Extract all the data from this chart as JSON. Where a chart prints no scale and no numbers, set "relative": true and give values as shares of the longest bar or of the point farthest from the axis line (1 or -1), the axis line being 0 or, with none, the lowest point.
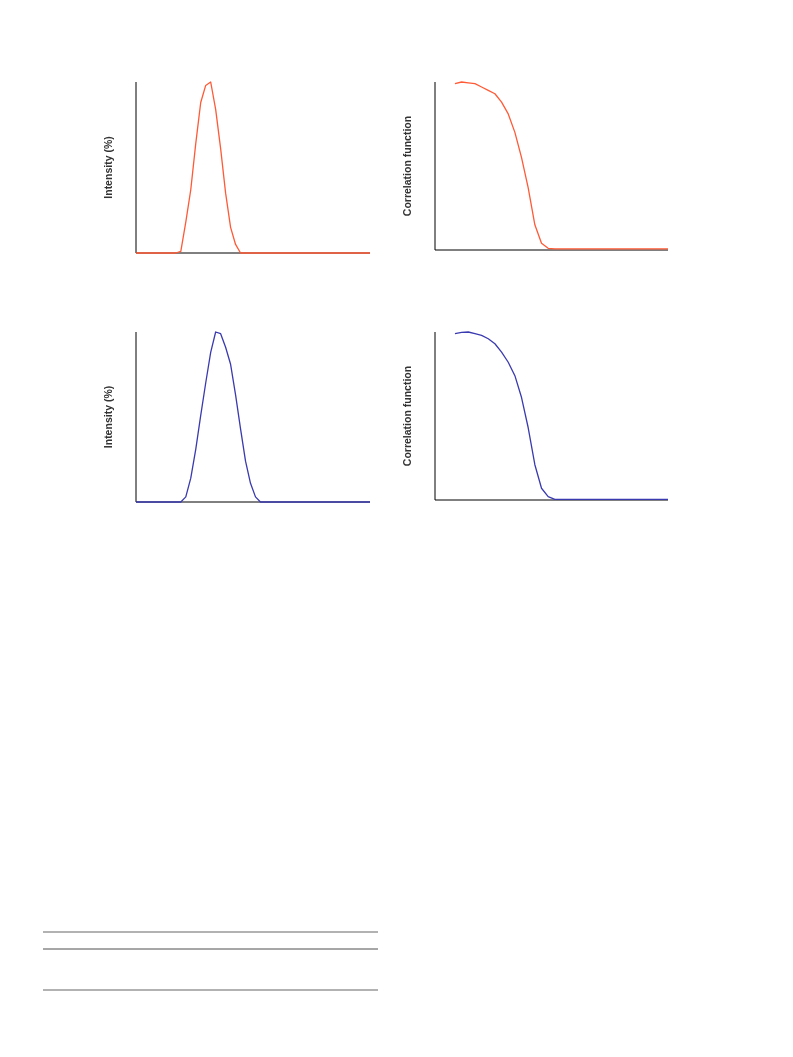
{
  "chart_data": [
    {
      "type": "line",
      "relative": true,
      "ylabel": "Intensity (%)",
      "categories": [
        null,
        null,
        null,
        null,
        null,
        null,
        null,
        null,
        null,
        null,
        null,
        null,
        null,
        null,
        null,
        null,
        null,
        null,
        null,
        null,
        null,
        null,
        null,
        null,
        null,
        null,
        null,
        null,
        null,
        null,
        null,
        null,
        null,
        null,
        null,
        null,
        null,
        null,
        null,
        null,
        null,
        null,
        null,
        null,
        null,
        null,
        null,
        null
      ],
      "series": [
        {
          "color": "#ff5a36",
          "values": [
            0,
            0,
            0,
            0,
            0,
            0,
            0,
            0,
            0,
            0.01,
            0.18,
            0.37,
            0.64,
            0.88,
            0.98,
            1,
            0.84,
            0.61,
            0.35,
            0.15,
            0.05,
            0,
            0,
            0,
            0,
            0,
            0,
            0,
            0,
            0,
            0,
            0,
            0,
            0,
            0,
            0,
            0,
            0,
            0,
            0,
            0,
            0,
            0,
            0,
            0,
            0,
            0,
            0
          ]
        }
      ]
    },
    {
      "type": "line",
      "relative": true,
      "ylabel": "Correlation function",
      "categories": [
        null,
        null,
        null,
        null,
        null,
        null,
        null,
        null,
        null,
        null,
        null,
        null,
        null,
        null,
        null,
        null,
        null,
        null,
        null,
        null,
        null,
        null,
        null,
        null,
        null,
        null,
        null,
        null,
        null,
        null,
        null,
        null,
        null,
        null,
        null,
        null
      ],
      "series": [
        {
          "color": "#ff5a36",
          "values": [
            null,
            null,
            null,
            0.99,
            1,
            0.995,
            0.99,
            0.97,
            0.95,
            0.93,
            0.88,
            0.81,
            0.7,
            0.55,
            0.37,
            0.15,
            0.04,
            0.01,
            0.007,
            0.007,
            0.007,
            0.007,
            0.007,
            0.007,
            0.007,
            0.007,
            0.007,
            0.007,
            0.007,
            0.007,
            0.007,
            0.007,
            0.007,
            0.007,
            0.007,
            0.007
          ]
        }
      ]
    },
    {
      "type": "line",
      "relative": true,
      "ylabel": "Intensity (%)",
      "categories": [
        null,
        null,
        null,
        null,
        null,
        null,
        null,
        null,
        null,
        null,
        null,
        null,
        null,
        null,
        null,
        null,
        null,
        null,
        null,
        null,
        null,
        null,
        null,
        null,
        null,
        null,
        null,
        null,
        null,
        null,
        null,
        null,
        null,
        null,
        null,
        null,
        null,
        null,
        null,
        null,
        null,
        null,
        null,
        null,
        null,
        null,
        null,
        null
      ],
      "series": [
        {
          "color": "#3a3ab0",
          "values": [
            0,
            0,
            0,
            0,
            0,
            0,
            0,
            0,
            0,
            0,
            0.03,
            0.14,
            0.31,
            0.51,
            0.7,
            0.88,
            1,
            0.99,
            0.91,
            0.81,
            0.63,
            0.43,
            0.24,
            0.11,
            0.03,
            0,
            0,
            0,
            0,
            0,
            0,
            0,
            0,
            0,
            0,
            0,
            0,
            0,
            0,
            0,
            0,
            0,
            0,
            0,
            0,
            0,
            0,
            0
          ]
        }
      ]
    },
    {
      "type": "line",
      "relative": true,
      "ylabel": "Correlation function",
      "categories": [
        null,
        null,
        null,
        null,
        null,
        null,
        null,
        null,
        null,
        null,
        null,
        null,
        null,
        null,
        null,
        null,
        null,
        null,
        null,
        null,
        null,
        null,
        null,
        null,
        null,
        null,
        null,
        null,
        null,
        null,
        null,
        null,
        null,
        null,
        null,
        null
      ],
      "series": [
        {
          "color": "#3a3ab0",
          "values": [
            null,
            null,
            null,
            0.99,
            0.998,
            1,
            0.99,
            0.98,
            0.96,
            0.93,
            0.88,
            0.82,
            0.74,
            0.61,
            0.43,
            0.21,
            0.07,
            0.02,
            0.004,
            0.004,
            0.004,
            0.004,
            0.004,
            0.004,
            0.004,
            0.004,
            0.004,
            0.004,
            0.004,
            0.004,
            0.004,
            0.004,
            0.004,
            0.004,
            0.004,
            0.004
          ]
        }
      ]
    }
  ]
}
